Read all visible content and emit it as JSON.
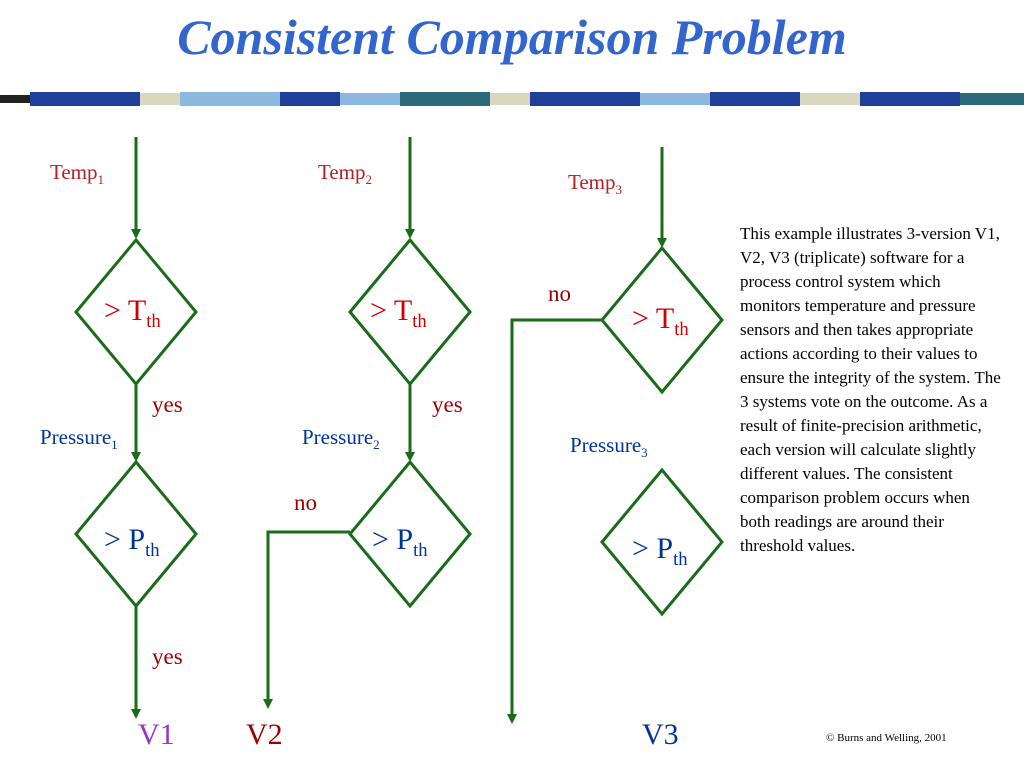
{
  "title": "Consistent Comparison Problem",
  "versions": [
    {
      "temp_label": "Temp",
      "temp_sub": "1",
      "cond1": "> T",
      "cond1_sub": "th",
      "branch1": "yes",
      "pressure_label": "Pressure",
      "pressure_sub": "1",
      "cond2": "> P",
      "cond2_sub": "th",
      "branch2": "yes",
      "output": "V1"
    },
    {
      "temp_label": "Temp",
      "temp_sub": "2",
      "cond1": "> T",
      "cond1_sub": "th",
      "branch1": "yes",
      "pressure_label": "Pressure",
      "pressure_sub": "2",
      "cond2": "> P",
      "cond2_sub": "th",
      "branch2": "no",
      "output": "V2"
    },
    {
      "temp_label": "Temp",
      "temp_sub": "3",
      "cond1": "> T",
      "cond1_sub": "th",
      "branch1": "no",
      "pressure_label": "Pressure",
      "pressure_sub": "3",
      "cond2": "> P",
      "cond2_sub": "th",
      "output": "V3"
    }
  ],
  "description": "This example illustrates 3-version V1, V2, V3 (triplicate) software  for a process control system which monitors temperature and pressure sensors and then takes appropriate actions according to their values to ensure the integrity of the system. The 3 systems vote on the outcome. As a result of finite-precision arithmetic, each version will calculate slightly different values. The consistent comparison problem occurs when both readings are around their threshold values.",
  "copyright": "© Burns and Welling, 2001",
  "colors": {
    "title": "#3366cc",
    "flow_line": "#1a6b1a",
    "temp_text": "#b22222",
    "pressure_text": "#003399",
    "branch_text": "#990000",
    "v1": "#9933cc",
    "v2": "#990000",
    "v3": "#003399"
  }
}
